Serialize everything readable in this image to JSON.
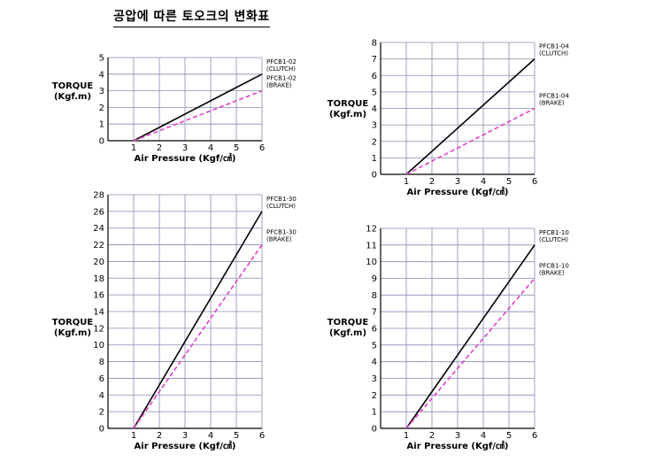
{
  "page_title": "공압에 따른 토오크의 변화표",
  "colors": {
    "clutch": "#000000",
    "brake": "#e040c8",
    "grid": "#8a8ab4"
  },
  "chart_data": [
    {
      "type": "line",
      "title": "",
      "xlabel": "Air Pressure (Kgf/㎠)",
      "ylabel": [
        "TORQUE",
        "(Kgf.m)"
      ],
      "xlim": [
        0,
        6
      ],
      "ylim": [
        0,
        5
      ],
      "xticks": [
        1,
        2,
        3,
        4,
        5,
        6
      ],
      "yticks": [
        0,
        1,
        2,
        3,
        4,
        5
      ],
      "grid": true,
      "series": [
        {
          "name": "PFCB1-02 (CLUTCH)",
          "label": [
            "PFCB1-02",
            "(CLUTCH)"
          ],
          "style": "solid",
          "x": [
            1,
            6
          ],
          "y": [
            0,
            4
          ]
        },
        {
          "name": "PFCB1-02 (BRAKE)",
          "label": [
            "PFCB1-02",
            "(BRAKE)"
          ],
          "style": "dashed",
          "x": [
            1,
            6
          ],
          "y": [
            0,
            3
          ]
        }
      ]
    },
    {
      "type": "line",
      "title": "",
      "xlabel": "Air Pressure (Kgf/㎠)",
      "ylabel": [
        "TORQUE",
        "(Kgf.m)"
      ],
      "xlim": [
        0,
        6
      ],
      "ylim": [
        0,
        8
      ],
      "xticks": [
        1,
        2,
        3,
        4,
        5,
        6
      ],
      "yticks": [
        0,
        1,
        2,
        3,
        4,
        5,
        6,
        7,
        8
      ],
      "grid": true,
      "series": [
        {
          "name": "PFCB1-04 (CLUTCH)",
          "label": [
            "PFCB1-04",
            "(CLUTCH)"
          ],
          "style": "solid",
          "x": [
            1,
            6
          ],
          "y": [
            0,
            7
          ]
        },
        {
          "name": "PFCB1-04 (BRAKE)",
          "label": [
            "PFCB1-04",
            "(BRAKE)"
          ],
          "style": "dashed",
          "x": [
            1,
            6
          ],
          "y": [
            0,
            4
          ]
        }
      ]
    },
    {
      "type": "line",
      "title": "",
      "xlabel": "Air Pressure (Kgf/㎠)",
      "ylabel": [
        "TORQUE",
        "(Kgf.m)"
      ],
      "xlim": [
        0,
        6
      ],
      "ylim": [
        0,
        28
      ],
      "xticks": [
        1,
        2,
        3,
        4,
        5,
        6
      ],
      "yticks": [
        0,
        2,
        4,
        6,
        8,
        10,
        12,
        14,
        16,
        18,
        20,
        22,
        24,
        26,
        28
      ],
      "grid": true,
      "series": [
        {
          "name": "PFCB1-30 (CLUTCH)",
          "label": [
            "PFCB1-30",
            "(CLUTCH)"
          ],
          "style": "solid",
          "x": [
            1,
            6
          ],
          "y": [
            0,
            26
          ]
        },
        {
          "name": "PFCB1-30 (BRAKE)",
          "label": [
            "PFCB1-30",
            "(BRAKE)"
          ],
          "style": "dashed",
          "x": [
            1,
            6
          ],
          "y": [
            0,
            22
          ]
        }
      ]
    },
    {
      "type": "line",
      "title": "",
      "xlabel": "Air Pressure (Kgf/㎠)",
      "ylabel": [
        "TORQUE",
        "(Kgf.m)"
      ],
      "xlim": [
        0,
        6
      ],
      "ylim": [
        0,
        12
      ],
      "xticks": [
        1,
        2,
        3,
        4,
        5,
        6
      ],
      "yticks": [
        0,
        1,
        2,
        3,
        4,
        5,
        6,
        7,
        8,
        9,
        10,
        11,
        12
      ],
      "grid": true,
      "series": [
        {
          "name": "PFCB1-10 (CLUTCH)",
          "label": [
            "PFCB1-10",
            "(CLUTCH)"
          ],
          "style": "solid",
          "x": [
            1,
            6
          ],
          "y": [
            0,
            11
          ]
        },
        {
          "name": "PFCB1-10 (BRAKE)",
          "label": [
            "PFCB1-10",
            "(BRAKE)"
          ],
          "style": "dashed",
          "x": [
            1,
            6
          ],
          "y": [
            0,
            9
          ]
        }
      ]
    }
  ]
}
